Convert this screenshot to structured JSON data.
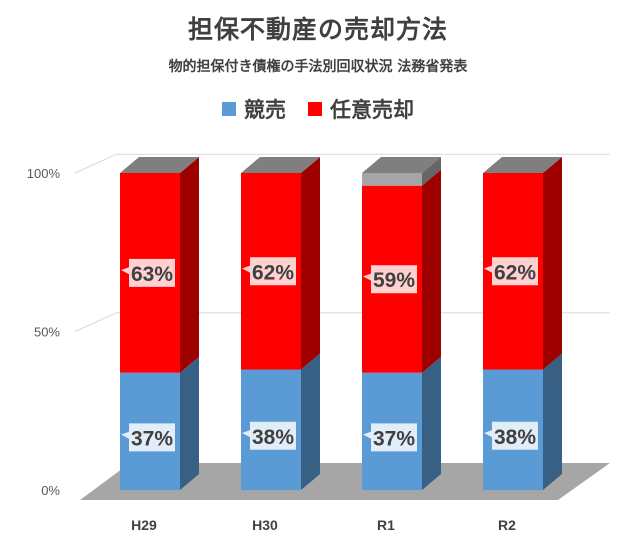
{
  "chart_data": {
    "type": "bar",
    "title": "担保不動産の売却方法",
    "subtitle": "物的担保付き債権の手法別回収状況 法務省発表",
    "categories": [
      "H29",
      "H30",
      "R1",
      "R2"
    ],
    "series": [
      {
        "name": "競売",
        "values": [
          37,
          38,
          37,
          38
        ],
        "labels": [
          "37%",
          "38%",
          "37%",
          "38%"
        ],
        "color": "#5b9bd5"
      },
      {
        "name": "任意売却",
        "values": [
          63,
          62,
          59,
          62
        ],
        "labels": [
          "63%",
          "62%",
          "59%",
          "62%"
        ],
        "color": "#ff0000"
      },
      {
        "name": "",
        "values": [
          0,
          0,
          4,
          0
        ],
        "labels": [
          "",
          "",
          "",
          ""
        ],
        "color": "#a5a5a5"
      }
    ],
    "stacked": true,
    "ylim": [
      0,
      100
    ],
    "yticks": [
      "0%",
      "50%",
      "100%"
    ],
    "legend_position": "top",
    "grid": true
  }
}
